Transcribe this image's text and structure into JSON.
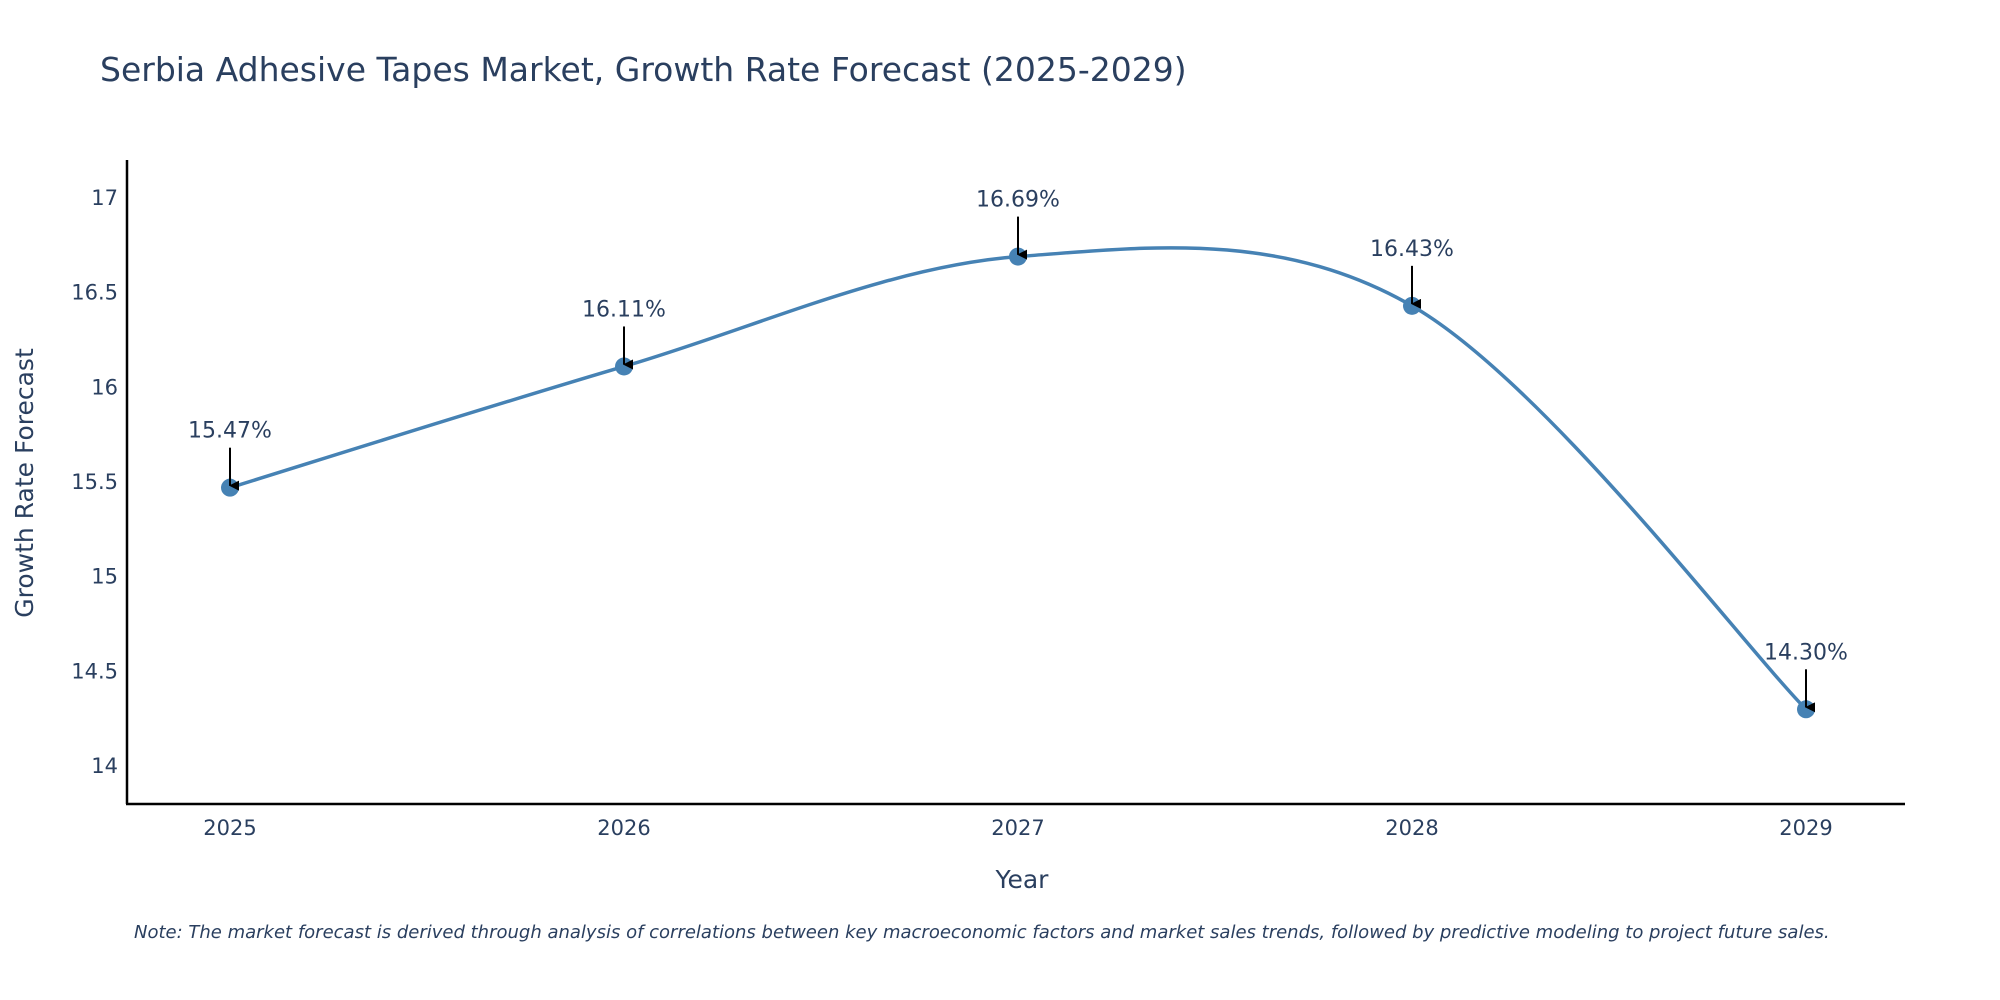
{
  "chart_data": {
    "type": "line",
    "title": "Serbia Adhesive Tapes Market, Growth Rate Forecast (2025-2029)",
    "xlabel": "Year",
    "ylabel": "Growth Rate Forecast",
    "x": [
      "2025",
      "2026",
      "2027",
      "2028",
      "2029"
    ],
    "values": [
      15.47,
      16.11,
      16.69,
      16.43,
      14.3
    ],
    "data_labels": [
      "15.47%",
      "16.11%",
      "16.69%",
      "16.43%",
      "14.30%"
    ],
    "ylim": [
      13.8,
      17.2
    ],
    "yticks": [
      14,
      14.5,
      15,
      15.5,
      16,
      16.5,
      17
    ],
    "ytick_labels": [
      "14",
      "14.5",
      "15",
      "15.5",
      "16",
      "16.5",
      "17"
    ],
    "line_shape": "spline",
    "grid": false,
    "legend": "none",
    "note": "Note: The market forecast is derived through analysis of correlations between key macroeconomic factors and market sales trends, followed by predictive modeling to project future sales.",
    "colors": {
      "line": "#4682b4",
      "marker": "#4682b4",
      "arrow": "#000000",
      "axis": "#000000",
      "text": "#2a3f5f"
    }
  }
}
